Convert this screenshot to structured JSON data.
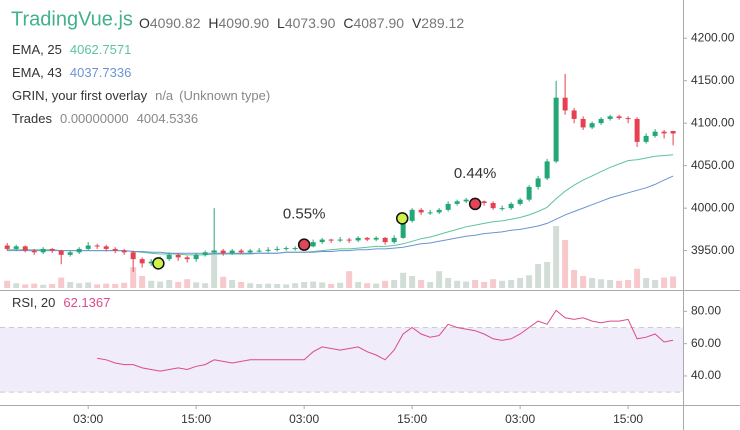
{
  "chart_data": {
    "type": "candlestick",
    "title": "TradingVue.js",
    "header": {
      "labels": [
        "O",
        "H",
        "L",
        "C",
        "V"
      ],
      "values": [
        "4090.82",
        "4090.90",
        "4073.90",
        "4087.90",
        "289.12"
      ]
    },
    "x": [
      0,
      1,
      2,
      3,
      4,
      5,
      6,
      7,
      8,
      9,
      10,
      11,
      12,
      13,
      14,
      15,
      16,
      17,
      18,
      19,
      20,
      21,
      22,
      23,
      24,
      25,
      26,
      27,
      28,
      29,
      30,
      31,
      32,
      33,
      34,
      35,
      36,
      37,
      38,
      39,
      40,
      41,
      42,
      43,
      44,
      45,
      46,
      47,
      48,
      49,
      50,
      51,
      52,
      53,
      54,
      55,
      56,
      57,
      58,
      59,
      60,
      61,
      62,
      63,
      64,
      65,
      66,
      67,
      68,
      69,
      70,
      71,
      72,
      73,
      74
    ],
    "ohlcv": [
      [
        3956,
        3959,
        3950,
        3952,
        180
      ],
      [
        3952,
        3957,
        3950,
        3955,
        120
      ],
      [
        3955,
        3956,
        3948,
        3950,
        90
      ],
      [
        3950,
        3952,
        3945,
        3948,
        110
      ],
      [
        3948,
        3954,
        3946,
        3952,
        80
      ],
      [
        3952,
        3953,
        3947,
        3950,
        100
      ],
      [
        3950,
        3951,
        3934,
        3945,
        260
      ],
      [
        3945,
        3950,
        3943,
        3948,
        150
      ],
      [
        3948,
        3954,
        3946,
        3952,
        120
      ],
      [
        3952,
        3960,
        3950,
        3956,
        140
      ],
      [
        3956,
        3958,
        3952,
        3955,
        90
      ],
      [
        3955,
        3957,
        3949,
        3952,
        110
      ],
      [
        3952,
        3954,
        3947,
        3950,
        100
      ],
      [
        3950,
        3952,
        3945,
        3948,
        130
      ],
      [
        3948,
        3950,
        3925,
        3940,
        520
      ],
      [
        3940,
        3942,
        3930,
        3935,
        300
      ],
      [
        3935,
        3940,
        3932,
        3937,
        180
      ],
      [
        3937,
        3943,
        3935,
        3940,
        160
      ],
      [
        3940,
        3948,
        3938,
        3945,
        200
      ],
      [
        3945,
        3947,
        3938,
        3942,
        150
      ],
      [
        3942,
        3944,
        3936,
        3940,
        220
      ],
      [
        3940,
        3947,
        3937,
        3945,
        140
      ],
      [
        3945,
        3950,
        3943,
        3948,
        120
      ],
      [
        3948,
        4000,
        3946,
        3950,
        950
      ],
      [
        3950,
        3952,
        3944,
        3947,
        280
      ],
      [
        3947,
        3952,
        3945,
        3950,
        200
      ],
      [
        3950,
        3952,
        3946,
        3948,
        150
      ],
      [
        3948,
        3952,
        3946,
        3950,
        120
      ],
      [
        3950,
        3953,
        3948,
        3950,
        100
      ],
      [
        3950,
        3954,
        3948,
        3951,
        110
      ],
      [
        3951,
        3955,
        3949,
        3952,
        100
      ],
      [
        3952,
        3955,
        3950,
        3953,
        90
      ],
      [
        3953,
        3955,
        3950,
        3953,
        120
      ],
      [
        3953,
        3958,
        3951,
        3955,
        150
      ],
      [
        3955,
        3963,
        3954,
        3960,
        160
      ],
      [
        3960,
        3965,
        3958,
        3963,
        140
      ],
      [
        3963,
        3964,
        3959,
        3962,
        100
      ],
      [
        3962,
        3966,
        3960,
        3963,
        130
      ],
      [
        3963,
        3965,
        3959,
        3962,
        420
      ],
      [
        3962,
        3967,
        3960,
        3965,
        150
      ],
      [
        3965,
        3966,
        3961,
        3963,
        120
      ],
      [
        3963,
        3967,
        3961,
        3965,
        110
      ],
      [
        3965,
        3966,
        3957,
        3960,
        180
      ],
      [
        3960,
        3968,
        3958,
        3965,
        200
      ],
      [
        3965,
        3988,
        3964,
        3985,
        380
      ],
      [
        3985,
        4000,
        3983,
        3998,
        300
      ],
      [
        3998,
        4000,
        3992,
        3995,
        200
      ],
      [
        3995,
        3998,
        3992,
        3995,
        150
      ],
      [
        3995,
        4000,
        3993,
        3998,
        420
      ],
      [
        3998,
        4008,
        3996,
        4005,
        250
      ],
      [
        4005,
        4010,
        4003,
        4008,
        180
      ],
      [
        4008,
        4012,
        4006,
        4010,
        160
      ],
      [
        4010,
        4011,
        4005,
        4008,
        200
      ],
      [
        4008,
        4009,
        4003,
        4006,
        150
      ],
      [
        4006,
        4008,
        3998,
        4000,
        220
      ],
      [
        4000,
        4003,
        3997,
        4000,
        180
      ],
      [
        4000,
        4007,
        3998,
        4005,
        200
      ],
      [
        4005,
        4012,
        4003,
        4010,
        250
      ],
      [
        4010,
        4027,
        4008,
        4025,
        320
      ],
      [
        4025,
        4038,
        4022,
        4035,
        600
      ],
      [
        4035,
        4058,
        4033,
        4055,
        650
      ],
      [
        4055,
        4150,
        4053,
        4130,
        1550
      ],
      [
        4130,
        4158,
        4110,
        4115,
        1200
      ],
      [
        4115,
        4118,
        4100,
        4105,
        450
      ],
      [
        4105,
        4108,
        4092,
        4095,
        300
      ],
      [
        4095,
        4102,
        4093,
        4100,
        250
      ],
      [
        4100,
        4107,
        4098,
        4105,
        220
      ],
      [
        4105,
        4110,
        4103,
        4108,
        200
      ],
      [
        4108,
        4110,
        4104,
        4106,
        180
      ],
      [
        4106,
        4108,
        4100,
        4105,
        200
      ],
      [
        4105,
        4107,
        4072,
        4078,
        480
      ],
      [
        4078,
        4088,
        4076,
        4085,
        250
      ],
      [
        4085,
        4093,
        4083,
        4090,
        200
      ],
      [
        4090,
        4092,
        4082,
        4088,
        260
      ],
      [
        4090.82,
        4090.9,
        4073.9,
        4087.9,
        289.12
      ]
    ],
    "colors": {
      "up": "#23a776",
      "down": "#e54150",
      "volume_up": "#d3ddd8",
      "volume_down": "#f7c8cc"
    },
    "overlays": [
      {
        "name": "EMA, 25",
        "color": "#5fc39d",
        "values": [
          3951,
          3951,
          3951,
          3951,
          3951,
          3951,
          3950,
          3950,
          3950,
          3950,
          3950,
          3950,
          3950,
          3950,
          3949,
          3948,
          3947,
          3946,
          3946,
          3946,
          3945,
          3945,
          3945,
          3946,
          3946,
          3946,
          3946,
          3946,
          3947,
          3947,
          3947,
          3948,
          3948,
          3948,
          3949,
          3950,
          3951,
          3952,
          3952,
          3953,
          3954,
          3955,
          3955,
          3956,
          3958,
          3961,
          3964,
          3966,
          3969,
          3972,
          3975,
          3978,
          3980,
          3982,
          3984,
          3985,
          3987,
          3989,
          3992,
          3996,
          4001,
          4011,
          4020,
          4027,
          4033,
          4038,
          4043,
          4048,
          4052,
          4056,
          4057,
          4059,
          4061,
          4062,
          4062.7571
        ]
      },
      {
        "name": "EMA, 43",
        "color": "#6c93d6",
        "values": [
          3950,
          3950,
          3950,
          3950,
          3950,
          3950,
          3950,
          3950,
          3950,
          3950,
          3950,
          3950,
          3950,
          3950,
          3949,
          3949,
          3948,
          3948,
          3947,
          3947,
          3947,
          3947,
          3947,
          3947,
          3947,
          3947,
          3947,
          3947,
          3947,
          3947,
          3947,
          3948,
          3948,
          3948,
          3948,
          3949,
          3949,
          3950,
          3950,
          3951,
          3951,
          3952,
          3952,
          3953,
          3954,
          3956,
          3958,
          3959,
          3961,
          3963,
          3965,
          3967,
          3968,
          3970,
          3971,
          3972,
          3974,
          3975,
          3977,
          3979,
          3982,
          3987,
          3992,
          3996,
          4000,
          4004,
          4008,
          4012,
          4015,
          4018,
          4021,
          4024,
          4028,
          4033,
          4037.7336
        ]
      }
    ],
    "grin": {
      "name": "GRIN, your first overlay",
      "value": "n/a",
      "type": "(Unknown type)"
    },
    "trades": {
      "name": "Trades",
      "values": [
        "0.00000000",
        "4004.5336"
      ],
      "points": [
        {
          "x": 16.8,
          "price": 3935,
          "color": "#cdf24a",
          "label": null
        },
        {
          "x": 33,
          "price": 3957,
          "color": "#e04657",
          "label": "0.55%"
        },
        {
          "x": 43.9,
          "price": 3988,
          "color": "#cdf24a",
          "label": null
        },
        {
          "x": 52,
          "price": 4005,
          "color": "#e04657",
          "label": "0.44%"
        }
      ]
    },
    "xlim": [
      -0.8,
      75.1
    ],
    "xticks": [
      {
        "value": 9,
        "label": "03:00"
      },
      {
        "value": 21,
        "label": "15:00"
      },
      {
        "value": 33,
        "label": "03:00"
      },
      {
        "value": 45,
        "label": "15:00"
      },
      {
        "value": 57,
        "label": "03:00"
      },
      {
        "value": 69,
        "label": "15:00"
      }
    ],
    "ylim": [
      3906,
      4245
    ],
    "yticks": [
      {
        "value": 3950,
        "label": "3950.00"
      },
      {
        "value": 4000,
        "label": "4000.00"
      },
      {
        "value": 4050,
        "label": "4050.00"
      },
      {
        "value": 4100,
        "label": "4100.00"
      },
      {
        "value": 4150,
        "label": "4150.00"
      },
      {
        "value": 4200,
        "label": "4200.00"
      }
    ],
    "rsi": {
      "name": "RSI, 20",
      "color": "#dc4a8c",
      "values": [
        null,
        null,
        null,
        null,
        null,
        null,
        null,
        null,
        null,
        null,
        51,
        50,
        48,
        47,
        47,
        45,
        44,
        43,
        44,
        45,
        44,
        46,
        47,
        50,
        49,
        48,
        49,
        50,
        50,
        50,
        50,
        50,
        50,
        50,
        55,
        58,
        57,
        56,
        57,
        58,
        55,
        53,
        50,
        56,
        66,
        70,
        66,
        64,
        65,
        72,
        70,
        69,
        68,
        66,
        63,
        62,
        63,
        66,
        70,
        74,
        72,
        80.6,
        76,
        75,
        76,
        74,
        73,
        74,
        74,
        75,
        63,
        64,
        66,
        61,
        62.1367
      ],
      "ylim": [
        22,
        92
      ],
      "band": [
        30,
        70
      ],
      "yticks": [
        {
          "value": 40,
          "label": "40.00"
        },
        {
          "value": 60,
          "label": "60.00"
        },
        {
          "value": 80,
          "label": "80.00"
        }
      ]
    }
  }
}
